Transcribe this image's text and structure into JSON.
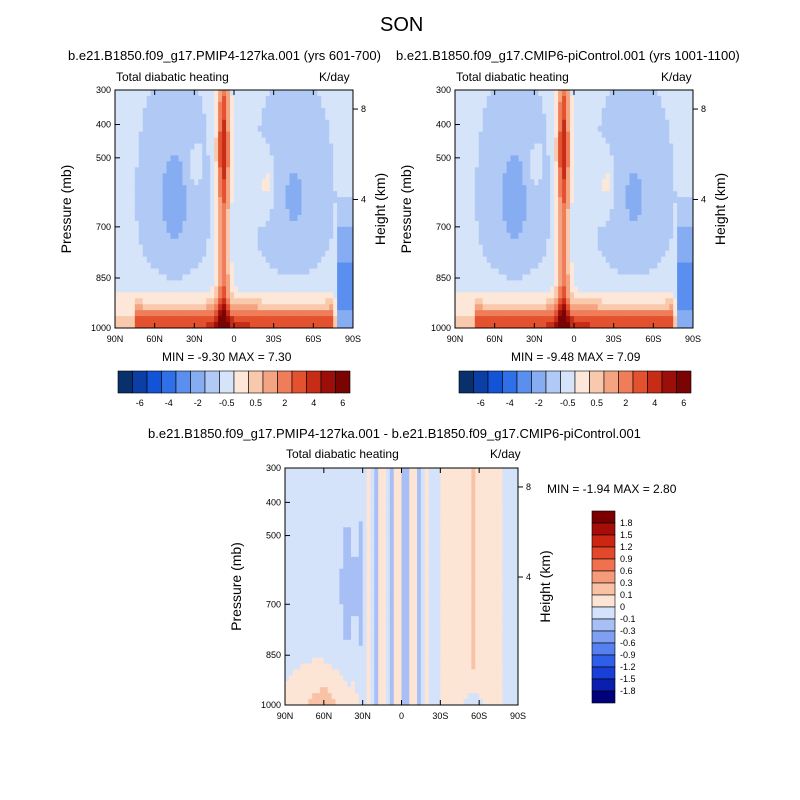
{
  "figure": {
    "title": "SON"
  },
  "colors": {
    "levels_12": [
      "#08306b",
      "#0b3fa6",
      "#1354d6",
      "#2f6fe8",
      "#5a8ff0",
      "#86acf2",
      "#b0c9f5",
      "#d6e4fa",
      "#fce7d8",
      "#f9c9ad",
      "#f5a481",
      "#ef7d59",
      "#e3512f",
      "#c72c17",
      "#9c0e0a",
      "#7a0404"
    ],
    "levels_diff": [
      "#00007a",
      "#0a1fb0",
      "#1a3fd6",
      "#2f5ee8",
      "#567ff0",
      "#7e9ff2",
      "#a7bff5",
      "#d4e2fa",
      "#fde5d6",
      "#f9c2a5",
      "#f59a7a",
      "#ef714f",
      "#e4482a",
      "#cd2613",
      "#a60c08",
      "#7a0000"
    ]
  },
  "chart_data": [
    {
      "type": "heatmap",
      "panel": "top-left",
      "title": "b.e21.B1850.f09_g17.PMIP4-127ka.001 (yrs 601-700)",
      "left_label": "Total diabatic heating",
      "right_label": "K/day",
      "xlabel": "",
      "ylabel": "Pressure (mb)",
      "y2label": "Height (km)",
      "x_ticks": [
        "90N",
        "60N",
        "30N",
        "0",
        "30S",
        "60S",
        "90S"
      ],
      "y_ticks": [
        "300",
        "400",
        "500",
        "700",
        "850",
        "1000"
      ],
      "y2_ticks": [
        "8",
        "4"
      ],
      "stats": "MIN =  -9.30   MAX =   7.30",
      "min": -9.3,
      "max": 7.3
    },
    {
      "type": "heatmap",
      "panel": "top-right",
      "title": "b.e21.B1850.f09_g17.CMIP6-piControl.001 (yrs 1001-1100)",
      "left_label": "Total diabatic heating",
      "right_label": "K/day",
      "xlabel": "",
      "ylabel": "Pressure (mb)",
      "y2label": "Height (km)",
      "x_ticks": [
        "90N",
        "60N",
        "30N",
        "0",
        "30S",
        "60S",
        "90S"
      ],
      "y_ticks": [
        "300",
        "400",
        "500",
        "700",
        "850",
        "1000"
      ],
      "y2_ticks": [
        "8",
        "4"
      ],
      "stats": "MIN =  -9.48   MAX =   7.09",
      "min": -9.48,
      "max": 7.09
    },
    {
      "type": "heatmap",
      "panel": "bottom",
      "title": "b.e21.B1850.f09_g17.PMIP4-127ka.001 - b.e21.B1850.f09_g17.CMIP6-piControl.001",
      "left_label": "Total diabatic heating",
      "right_label": "K/day",
      "xlabel": "",
      "ylabel": "Pressure (mb)",
      "y2label": "Height (km)",
      "x_ticks": [
        "90N",
        "60N",
        "30N",
        "0",
        "30S",
        "60S",
        "90S"
      ],
      "y_ticks": [
        "300",
        "400",
        "500",
        "700",
        "850",
        "1000"
      ],
      "y2_ticks": [
        "8",
        "4"
      ],
      "stats": "MIN = -1.94   MAX =   2.80",
      "min": -1.94,
      "max": 2.8
    }
  ],
  "colorbars": {
    "top_labels": [
      "-6",
      "-4",
      "-2",
      "-0.5",
      "0.5",
      "2",
      "4",
      "6"
    ],
    "bottom_labels": [
      "1.8",
      "1.5",
      "1.2",
      "0.9",
      "0.6",
      "0.3",
      "0.1",
      "0",
      "-0.1",
      "-0.3",
      "-0.6",
      "-0.9",
      "-1.2",
      "-1.5",
      "-1.8"
    ]
  }
}
